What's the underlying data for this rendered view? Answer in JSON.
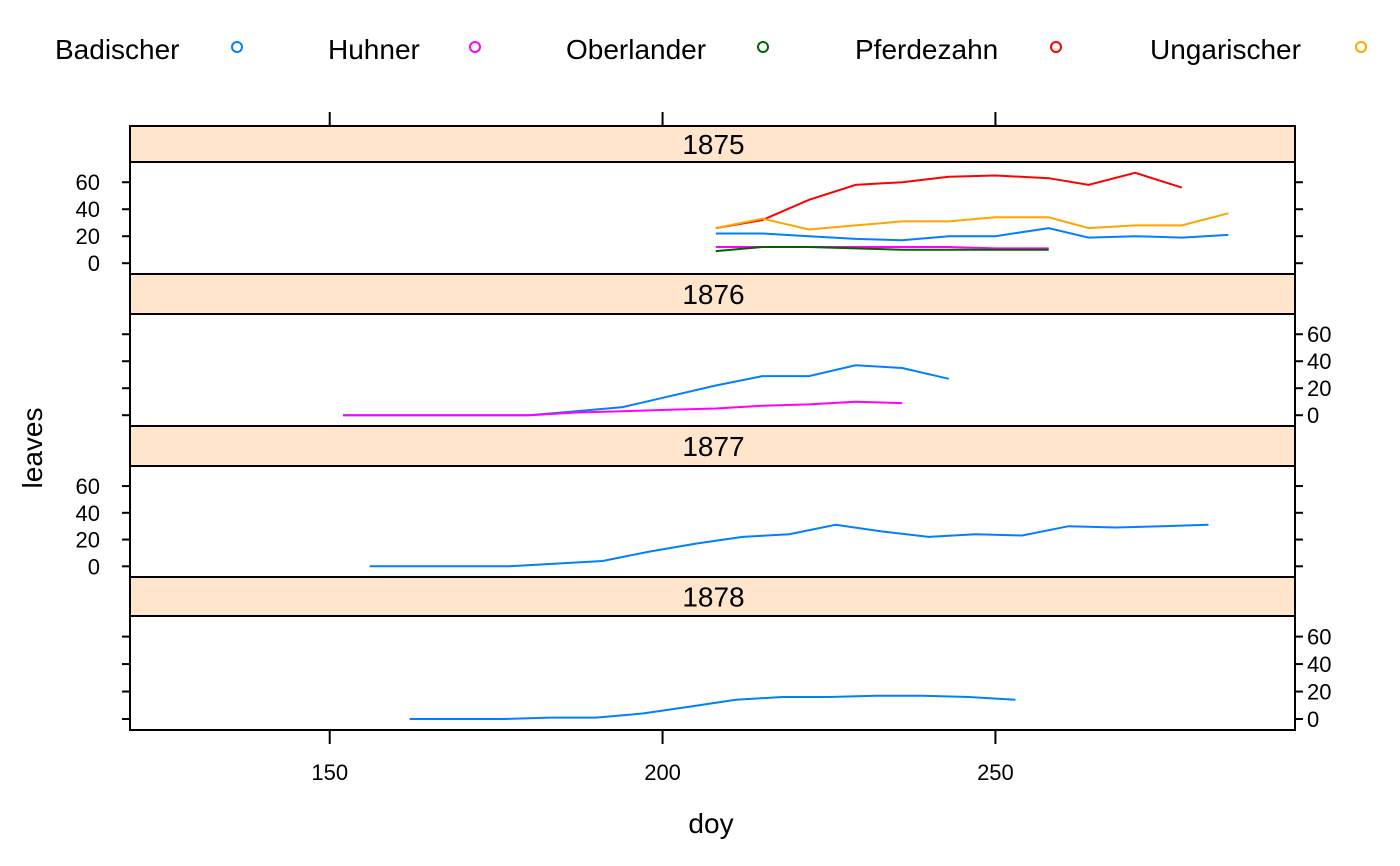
{
  "chart_data": {
    "type": "line",
    "xlabel": "doy",
    "ylabel": "leaves",
    "xlim": [
      120,
      295
    ],
    "ylim": [
      -8,
      75
    ],
    "x_ticks": [
      150,
      200,
      250
    ],
    "y_ticks": [
      0,
      20,
      40,
      60
    ],
    "legend_position": "top",
    "legend": [
      {
        "name": "Badischer",
        "color": "#0080ff"
      },
      {
        "name": "Huhner",
        "color": "#ff00ff"
      },
      {
        "name": "Oberlander",
        "color": "#006400"
      },
      {
        "name": "Pferdezahn",
        "color": "#ff0000"
      },
      {
        "name": "Ungarischer",
        "color": "#ffa500"
      }
    ],
    "panels": [
      {
        "label": "1875",
        "series": [
          {
            "name": "Badischer",
            "color": "#0080ff",
            "x": [
              208,
              215,
              222,
              229,
              236,
              243,
              250,
              258,
              264,
              271,
              278,
              285
            ],
            "y": [
              22,
              22,
              20,
              18,
              17,
              20,
              20,
              26,
              19,
              20,
              19,
              21
            ]
          },
          {
            "name": "Huhner",
            "color": "#ff00ff",
            "x": [
              208,
              215,
              222,
              229,
              236,
              243,
              250,
              258
            ],
            "y": [
              12,
              12,
              12,
              12,
              12,
              12,
              11,
              11
            ]
          },
          {
            "name": "Oberlander",
            "color": "#006400",
            "x": [
              208,
              215,
              222,
              229,
              236,
              243,
              250,
              258
            ],
            "y": [
              9,
              12,
              12,
              11,
              10,
              10,
              10,
              10
            ]
          },
          {
            "name": "Pferdezahn",
            "color": "#ff0000",
            "x": [
              208,
              215,
              222,
              229,
              236,
              243,
              250,
              258,
              264,
              271,
              278
            ],
            "y": [
              26,
              32,
              47,
              58,
              60,
              64,
              65,
              63,
              58,
              67,
              56
            ]
          },
          {
            "name": "Ungarischer",
            "color": "#ffa500",
            "x": [
              208,
              215,
              222,
              229,
              236,
              243,
              250,
              258,
              264,
              271,
              278,
              285
            ],
            "y": [
              26,
              33,
              25,
              28,
              31,
              31,
              34,
              34,
              26,
              28,
              28,
              37
            ]
          }
        ]
      },
      {
        "label": "1876",
        "series": [
          {
            "name": "Badischer",
            "color": "#0080ff",
            "x": [
              152,
              159,
              166,
              173,
              180,
              187,
              194,
              201,
              208,
              215,
              222,
              229,
              236,
              243
            ],
            "y": [
              0,
              0,
              0,
              0,
              0,
              3,
              6,
              14,
              22,
              29,
              29,
              37,
              35,
              27
            ]
          },
          {
            "name": "Huhner",
            "color": "#ff00ff",
            "x": [
              152,
              159,
              166,
              173,
              180,
              187,
              194,
              201,
              208,
              215,
              222,
              229,
              236
            ],
            "y": [
              0,
              0,
              0,
              0,
              0,
              2,
              3,
              4,
              5,
              7,
              8,
              10,
              9
            ]
          }
        ]
      },
      {
        "label": "1877",
        "series": [
          {
            "name": "Badischer",
            "color": "#0080ff",
            "x": [
              156,
              163,
              170,
              177,
              184,
              191,
              198,
              205,
              212,
              219,
              226,
              233,
              240,
              247,
              254,
              261,
              268,
              275,
              282
            ],
            "y": [
              0,
              0,
              0,
              0,
              2,
              4,
              11,
              17,
              22,
              24,
              31,
              26,
              22,
              24,
              23,
              30,
              29,
              30,
              31
            ]
          }
        ]
      },
      {
        "label": "1878",
        "series": [
          {
            "name": "Badischer",
            "color": "#0080ff",
            "x": [
              162,
              169,
              176,
              183,
              190,
              197,
              204,
              211,
              218,
              225,
              232,
              239,
              246,
              253
            ],
            "y": [
              0,
              0,
              0,
              1,
              1,
              4,
              9,
              14,
              16,
              16,
              17,
              17,
              16,
              14
            ]
          }
        ]
      }
    ]
  }
}
